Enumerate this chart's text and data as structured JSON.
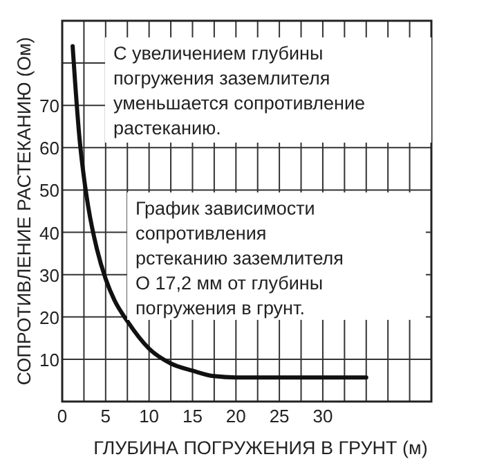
{
  "chart_data": {
    "type": "line",
    "xlabel": "ГЛУБИНА ПОГРУЖЕНИЯ В ГРУНТ (м)",
    "ylabel": "СОПРОТИВЛЕНИЕ РАСТЕКАНИЮ (Ом)",
    "annotations": [
      "С увеличением глубины\nпогружения заземлителя\nуменьшается сопротивление\nрастеканию.",
      "График зависимости\nсопротивления\nрстеканию заземлителя\nО 17,2 мм от глубины\nпогружения в грунт."
    ],
    "x": [
      1.2,
      1.5,
      2,
      2.5,
      3,
      4,
      5,
      6,
      7.5,
      10,
      12.5,
      15,
      17.5,
      20,
      35
    ],
    "series": [
      {
        "color": "#111111",
        "values": [
          84,
          75,
          62,
          53,
          46,
          36,
          29,
          24,
          19,
          12.5,
          9,
          7.3,
          6,
          5.7,
          5.7
        ]
      }
    ],
    "xlim": [
      0,
      42.5
    ],
    "xticks": [
      0,
      {
        "value": 2.5,
        "label": null
      },
      5,
      {
        "value": 7.5,
        "label": null
      },
      10,
      {
        "value": 12.5,
        "label": null
      },
      15,
      {
        "value": 17.5,
        "label": null
      },
      20,
      {
        "value": 22.5,
        "label": null
      },
      25,
      {
        "value": 27.5,
        "label": null
      },
      30,
      {
        "value": 32.5,
        "label": null
      },
      {
        "value": 35,
        "label": null
      },
      {
        "value": 37.5,
        "label": null
      },
      {
        "value": 40,
        "label": null
      },
      {
        "value": 42.5,
        "label": null
      }
    ],
    "ylim": [
      0,
      90
    ],
    "yticks": [
      10,
      20,
      30,
      40,
      50,
      60,
      70,
      {
        "value": 80,
        "label": null
      },
      {
        "value": 90,
        "label": null
      }
    ],
    "grid": true,
    "marker": "none",
    "line_style": "solid"
  }
}
